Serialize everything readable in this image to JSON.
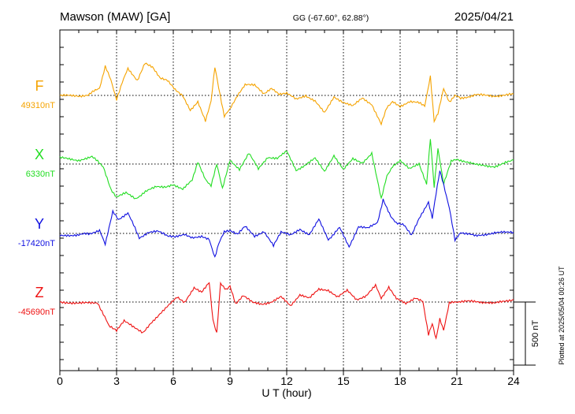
{
  "header": {
    "station": "Mawson (MAW)  [GA]",
    "coords": "GG (-67.60°,  62.88°)",
    "date": "2025/04/21"
  },
  "footer": {
    "plotted": "Plotted at 2025/05/04 00:26 UT"
  },
  "chart_data": {
    "type": "line",
    "xlabel": "U T (hour)",
    "xlim": [
      0,
      24
    ],
    "x_ticks": [
      0,
      3,
      6,
      9,
      12,
      15,
      18,
      21,
      24
    ],
    "grid": true,
    "scale_bar": {
      "label": "500 nT",
      "nT": 500
    },
    "series": [
      {
        "name": "F",
        "baseline_label": "49310nT",
        "baseline": 49310,
        "color": "#f5a300",
        "x": [
          0,
          1,
          1.5,
          2.1,
          2.4,
          2.7,
          3.0,
          3.3,
          3.6,
          4.1,
          4.5,
          4.9,
          5.3,
          5.7,
          6.1,
          6.5,
          6.9,
          7.3,
          7.7,
          8.0,
          8.2,
          8.4,
          8.7,
          9.0,
          9.4,
          9.8,
          10.3,
          10.8,
          11.2,
          11.6,
          12.0,
          12.5,
          13.0,
          13.5,
          14.0,
          14.5,
          15.0,
          15.5,
          16.0,
          16.5,
          17.0,
          17.3,
          17.6,
          18.0,
          18.5,
          19.0,
          19.3,
          19.6,
          19.8,
          20.0,
          20.3,
          20.6,
          20.9,
          21.2,
          22,
          23,
          24
        ],
        "y": [
          0,
          -5,
          5,
          60,
          230,
          120,
          -30,
          100,
          215,
          120,
          260,
          225,
          135,
          115,
          45,
          0,
          -115,
          -50,
          -205,
          -40,
          230,
          65,
          -165,
          -110,
          -5,
          85,
          80,
          15,
          55,
          5,
          15,
          -30,
          0,
          -45,
          -140,
          -10,
          -55,
          -85,
          -20,
          -70,
          -230,
          -95,
          -45,
          -85,
          -50,
          -60,
          -80,
          150,
          -205,
          -140,
          50,
          -50,
          0,
          -25,
          5,
          -5,
          10
        ]
      },
      {
        "name": "X",
        "baseline_label": "6330nT",
        "baseline": 6330,
        "color": "#22dd22",
        "x": [
          0,
          1,
          1.7,
          2.3,
          2.7,
          3.0,
          3.5,
          4.0,
          4.6,
          5.1,
          5.6,
          6.0,
          6.5,
          7.0,
          7.3,
          7.7,
          8.0,
          8.3,
          8.6,
          9.0,
          9.5,
          10.0,
          10.5,
          11.0,
          11.5,
          12.0,
          12.5,
          13.0,
          13.5,
          14.0,
          14.5,
          15.0,
          15.5,
          16.0,
          16.5,
          17.0,
          17.3,
          17.6,
          18.0,
          18.5,
          19.0,
          19.4,
          19.6,
          19.8,
          20.0,
          20.3,
          20.7,
          21.0,
          22,
          23,
          24
        ],
        "y": [
          50,
          30,
          60,
          -20,
          -200,
          -260,
          -230,
          -275,
          -215,
          -175,
          -180,
          -160,
          -200,
          -130,
          20,
          -120,
          -170,
          -5,
          -190,
          30,
          -40,
          85,
          -40,
          55,
          45,
          100,
          -50,
          -5,
          45,
          -60,
          70,
          -45,
          40,
          10,
          85,
          -280,
          -90,
          -20,
          30,
          -40,
          0,
          -165,
          200,
          -185,
          120,
          -160,
          20,
          40,
          -5,
          -20,
          30
        ]
      },
      {
        "name": "Y",
        "baseline_label": "-17420nT",
        "baseline": -17420,
        "color": "#1010e0",
        "x": [
          0,
          1,
          1.6,
          2.1,
          2.4,
          2.8,
          3.1,
          3.6,
          4.2,
          4.7,
          5.2,
          5.7,
          6.1,
          6.6,
          7.0,
          7.5,
          7.9,
          8.2,
          8.4,
          8.7,
          9.0,
          9.4,
          9.8,
          10.3,
          10.8,
          11.3,
          11.7,
          12.2,
          12.7,
          13.2,
          13.7,
          14.2,
          14.8,
          15.3,
          15.8,
          16.3,
          16.8,
          17.1,
          17.5,
          17.8,
          18.2,
          18.6,
          19.0,
          19.5,
          19.7,
          19.9,
          20.1,
          20.3,
          20.6,
          20.9,
          21.2,
          22,
          23,
          24
        ],
        "y": [
          -20,
          -10,
          0,
          25,
          -90,
          170,
          110,
          165,
          -35,
          10,
          15,
          -20,
          -30,
          -5,
          -35,
          -20,
          -45,
          -190,
          -80,
          10,
          25,
          -5,
          55,
          -20,
          15,
          -100,
          10,
          -15,
          35,
          -10,
          110,
          -50,
          45,
          -105,
          55,
          40,
          85,
          270,
          140,
          80,
          70,
          -10,
          120,
          250,
          125,
          320,
          500,
          390,
          205,
          -55,
          10,
          -20,
          5,
          10
        ]
      },
      {
        "name": "Z",
        "baseline_label": "-45690nT",
        "baseline": -45690,
        "color": "#ee1111",
        "x": [
          0,
          1,
          2.0,
          2.6,
          3.0,
          3.4,
          3.9,
          4.4,
          4.8,
          5.3,
          5.8,
          6.2,
          6.6,
          7.1,
          7.5,
          7.9,
          8.1,
          8.3,
          8.5,
          8.8,
          9.0,
          9.3,
          9.7,
          10.2,
          10.7,
          11.2,
          11.7,
          12.2,
          12.7,
          13.2,
          13.7,
          14.2,
          14.7,
          15.2,
          15.7,
          16.2,
          16.7,
          17.0,
          17.4,
          17.8,
          18.3,
          18.8,
          19.2,
          19.5,
          19.7,
          19.9,
          20.1,
          20.3,
          20.6,
          20.9,
          21.2,
          22,
          23,
          24
        ],
        "y": [
          0,
          -10,
          -5,
          -190,
          -230,
          -150,
          -200,
          -240,
          -170,
          -90,
          -20,
          40,
          0,
          110,
          80,
          160,
          -140,
          -245,
          150,
          100,
          130,
          -20,
          50,
          -5,
          -15,
          0,
          40,
          -30,
          60,
          30,
          100,
          95,
          40,
          90,
          20,
          50,
          130,
          30,
          115,
          25,
          -10,
          35,
          10,
          -260,
          -170,
          -290,
          -130,
          -220,
          -10,
          0,
          5,
          5,
          -10,
          20
        ]
      }
    ]
  }
}
